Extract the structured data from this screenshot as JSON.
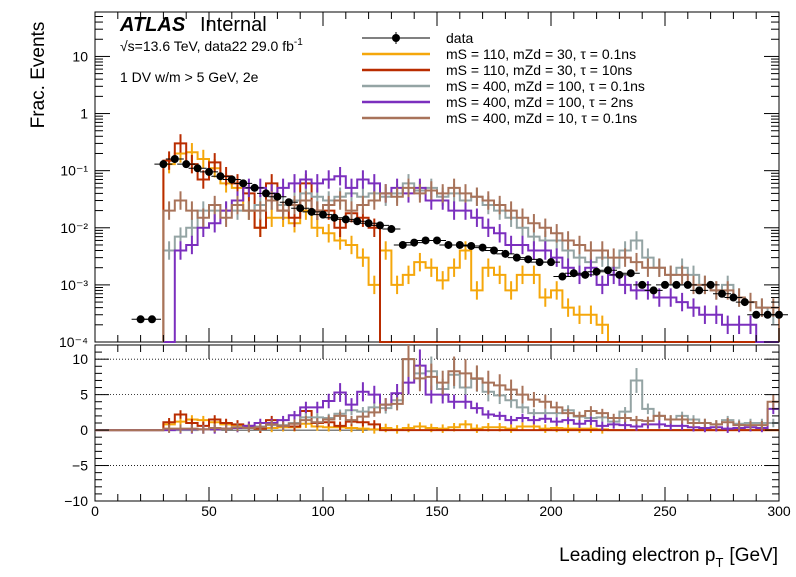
{
  "chart_data": {
    "type": "line",
    "subtype": "histogram-with-ratio",
    "experiment": "ATLAS",
    "status": "Internal",
    "energy_label": "√s=13.6 TeV, data22 29.0 fb",
    "lumi_superscript": "-1",
    "selection_label": "1 DV w/m > 5 GeV, 2e",
    "xlabel": "Leading electron p",
    "xlabel_sub": "T",
    "xlabel_unit": "[GeV]",
    "ylabel": "Frac. Events",
    "xlim": [
      0,
      300
    ],
    "ylim_log": [
      0.0001,
      60
    ],
    "ratio_ylim": [
      -10,
      12
    ],
    "x_ticks": [
      "0",
      "50",
      "100",
      "150",
      "200",
      "250",
      "300"
    ],
    "y_ticks_main": [
      {
        "value": 10,
        "label": "10"
      },
      {
        "value": 1,
        "label": "1"
      },
      {
        "value": 0.1,
        "label": "10⁻¹"
      },
      {
        "value": 0.01,
        "label": "10⁻²"
      },
      {
        "value": 0.001,
        "label": "10⁻³"
      },
      {
        "value": 0.0001,
        "label": "10⁻⁴"
      }
    ],
    "y_ticks_ratio": [
      "10",
      "5",
      "0",
      "−5",
      "−10"
    ],
    "legend": [
      {
        "label": "data",
        "color": "#000000",
        "marker": "point"
      },
      {
        "label": "mS = 110, mZd = 30, τ = 0.1ns",
        "color": "#f5a70b",
        "marker": "line"
      },
      {
        "label": "mS = 110, mZd = 30, τ = 10ns",
        "color": "#b92c00",
        "marker": "line"
      },
      {
        "label": "mS = 400, mZd = 100, τ = 0.1ns",
        "color": "#94a4a4",
        "marker": "line"
      },
      {
        "label": "mS = 400, mZd = 100, τ = 2ns",
        "color": "#7b2fbe",
        "marker": "line"
      },
      {
        "label": "mS = 400, mZd = 10, τ = 0.1ns",
        "color": "#a8735a",
        "marker": "line"
      }
    ],
    "bin_width": 5,
    "data": {
      "name": "data",
      "x": [
        20,
        25,
        30,
        35,
        40,
        45,
        50,
        55,
        60,
        65,
        70,
        75,
        80,
        85,
        90,
        95,
        100,
        105,
        110,
        115,
        120,
        125,
        130,
        135,
        140,
        145,
        150,
        155,
        160,
        165,
        170,
        175,
        180,
        185,
        190,
        195,
        200,
        205,
        210,
        215,
        220,
        225,
        230,
        235,
        240,
        245,
        250,
        255,
        260,
        265,
        270,
        275,
        280,
        285,
        290,
        295,
        300
      ],
      "y": [
        0.00025,
        0.00025,
        0.13,
        0.16,
        0.13,
        0.11,
        0.095,
        0.08,
        0.07,
        0.06,
        0.05,
        0.04,
        0.035,
        0.028,
        0.022,
        0.019,
        0.017,
        0.015,
        0.014,
        0.013,
        0.012,
        0.011,
        0.0095,
        0.005,
        0.0055,
        0.006,
        0.006,
        0.005,
        0.005,
        0.0048,
        0.0045,
        0.004,
        0.0035,
        0.003,
        0.0028,
        0.0025,
        0.0025,
        0.0014,
        0.0016,
        0.0015,
        0.0017,
        0.0018,
        0.0015,
        0.0016,
        0.001,
        0.0008,
        0.001,
        0.001,
        0.001,
        0.0008,
        0.001,
        0.0007,
        0.0006,
        0.0005,
        0.0003,
        0.0003,
        0.0003
      ]
    },
    "series": [
      {
        "name": "mS = 110, mZd = 30, τ = 0.1ns",
        "color": "#f5a70b",
        "edges": [
          30,
          35,
          40,
          45,
          50,
          55,
          60,
          65,
          70,
          75,
          80,
          85,
          90,
          95,
          100,
          105,
          110,
          115,
          120,
          125,
          130,
          135,
          140,
          145,
          150,
          155,
          160,
          165,
          170,
          175,
          180,
          185,
          190,
          195,
          200,
          205,
          210,
          215,
          220,
          225,
          230,
          235,
          240,
          245,
          250,
          255,
          260,
          265,
          270,
          275,
          280,
          285,
          290,
          295,
          300
        ],
        "values": [
          0.13,
          0.2,
          0.21,
          0.16,
          0.11,
          0.06,
          0.05,
          0.02,
          0.01,
          0.015,
          0.015,
          0.012,
          0.02,
          0.01,
          0.008,
          0.006,
          0.005,
          0.003,
          0.001,
          0.004,
          0.001,
          0.0015,
          0.0025,
          0.002,
          0.0012,
          0.002,
          0.004,
          0.0008,
          0.002,
          0.0015,
          0.0008,
          0.0015,
          0.0015,
          0.0006,
          0.0008,
          0.0004,
          0.0003,
          0.0003,
          0.0002,
          0.0001,
          0.0001,
          0.0001,
          0.0001,
          0.0001,
          0.0001,
          0.0001,
          0.0001,
          0.0001,
          0.0001,
          0.0001,
          0.0001,
          0.0001,
          0.0001,
          0.0001
        ]
      },
      {
        "name": "mS = 110, mZd = 30, τ = 10ns",
        "color": "#b92c00",
        "edges": [
          30,
          35,
          40,
          45,
          50,
          55,
          60,
          65,
          70,
          75,
          80,
          85,
          90,
          95,
          100,
          105,
          110,
          115,
          120,
          125,
          130,
          135,
          140,
          145,
          150,
          155,
          160,
          165,
          170,
          175,
          180,
          185,
          190,
          195,
          200,
          205,
          210,
          215,
          220,
          225,
          230,
          235,
          240,
          245,
          250,
          255,
          260,
          265,
          270,
          275,
          280,
          285,
          290,
          295,
          300
        ],
        "values": [
          0.15,
          0.3,
          0.13,
          0.07,
          0.14,
          0.08,
          0.06,
          0.04,
          0.01,
          0.06,
          0.02,
          0.015,
          0.06,
          0.02,
          0.02,
          0.01,
          0.018,
          0.015,
          0.01,
          0.0001,
          0.0001,
          0.0001,
          0.0001,
          0.0001,
          0.0001,
          0.0001,
          0.0001,
          0.0001,
          0.0001,
          0.0001,
          0.0001,
          0.0001,
          0.0001,
          0.0001,
          0.0001,
          0.0001,
          0.0001,
          0.0001,
          0.0001,
          0.0001,
          0.0001,
          0.0001,
          0.0001,
          0.0001,
          0.0001,
          0.0001,
          0.0001,
          0.0001,
          0.0001,
          0.0001,
          0.0001,
          0.0001,
          0.0001,
          0.0001
        ]
      },
      {
        "name": "mS = 400, mZd = 100, τ = 0.1ns",
        "color": "#94a4a4",
        "edges": [
          30,
          35,
          40,
          45,
          50,
          55,
          60,
          65,
          70,
          75,
          80,
          85,
          90,
          95,
          100,
          105,
          110,
          115,
          120,
          125,
          130,
          135,
          140,
          145,
          150,
          155,
          160,
          165,
          170,
          175,
          180,
          185,
          190,
          195,
          200,
          205,
          210,
          215,
          220,
          225,
          230,
          235,
          240,
          245,
          250,
          255,
          260,
          265,
          270,
          275,
          280,
          285,
          290,
          295,
          300
        ],
        "values": [
          0.004,
          0.007,
          0.01,
          0.02,
          0.02,
          0.02,
          0.02,
          0.02,
          0.025,
          0.03,
          0.025,
          0.03,
          0.04,
          0.035,
          0.03,
          0.035,
          0.04,
          0.035,
          0.04,
          0.035,
          0.04,
          0.06,
          0.045,
          0.05,
          0.035,
          0.04,
          0.03,
          0.035,
          0.025,
          0.02,
          0.015,
          0.01,
          0.007,
          0.006,
          0.006,
          0.004,
          0.003,
          0.0025,
          0.003,
          0.002,
          0.004,
          0.006,
          0.003,
          0.002,
          0.0015,
          0.002,
          0.0015,
          0.001,
          0.0008,
          0.001,
          0.0006,
          0.0005,
          0.0004,
          0.0003
        ]
      },
      {
        "name": "mS = 400, mZd = 100, τ = 2ns",
        "color": "#7b2fbe",
        "edges": [
          30,
          35,
          40,
          45,
          50,
          55,
          60,
          65,
          70,
          75,
          80,
          85,
          90,
          95,
          100,
          105,
          110,
          115,
          120,
          125,
          130,
          135,
          140,
          145,
          150,
          155,
          160,
          165,
          170,
          175,
          180,
          185,
          190,
          195,
          200,
          205,
          210,
          215,
          220,
          225,
          230,
          235,
          240,
          245,
          250,
          255,
          260,
          265,
          270,
          275,
          280,
          285,
          290,
          295,
          300
        ],
        "values": [
          0.0001,
          0.004,
          0.005,
          0.01,
          0.012,
          0.02,
          0.03,
          0.05,
          0.05,
          0.04,
          0.05,
          0.06,
          0.07,
          0.06,
          0.07,
          0.08,
          0.05,
          0.07,
          0.06,
          0.04,
          0.05,
          0.04,
          0.05,
          0.03,
          0.03,
          0.02,
          0.02,
          0.015,
          0.01,
          0.008,
          0.005,
          0.005,
          0.004,
          0.004,
          0.003,
          0.002,
          0.0015,
          0.002,
          0.001,
          0.0015,
          0.001,
          0.0008,
          0.0008,
          0.0006,
          0.0006,
          0.0005,
          0.0004,
          0.0003,
          0.0003,
          0.0002,
          0.0002,
          0.0002,
          0.0001,
          0.0001
        ]
      },
      {
        "name": "mS = 400, mZd = 10, τ = 0.1ns",
        "color": "#a8735a",
        "edges": [
          30,
          35,
          40,
          45,
          50,
          55,
          60,
          65,
          70,
          75,
          80,
          85,
          90,
          95,
          100,
          105,
          110,
          115,
          120,
          125,
          130,
          135,
          140,
          145,
          150,
          155,
          160,
          165,
          170,
          175,
          180,
          185,
          190,
          195,
          200,
          205,
          210,
          215,
          220,
          225,
          230,
          235,
          240,
          245,
          250,
          255,
          260,
          265,
          270,
          275,
          280,
          285,
          290,
          295,
          300
        ],
        "values": [
          0.02,
          0.03,
          0.02,
          0.015,
          0.025,
          0.015,
          0.025,
          0.02,
          0.02,
          0.03,
          0.02,
          0.025,
          0.03,
          0.02,
          0.025,
          0.03,
          0.02,
          0.025,
          0.03,
          0.04,
          0.035,
          0.05,
          0.04,
          0.045,
          0.04,
          0.05,
          0.04,
          0.035,
          0.03,
          0.025,
          0.02,
          0.015,
          0.012,
          0.01,
          0.008,
          0.006,
          0.005,
          0.004,
          0.004,
          0.003,
          0.003,
          0.0025,
          0.002,
          0.002,
          0.0015,
          0.0015,
          0.001,
          0.001,
          0.0008,
          0.0008,
          0.0006,
          0.0005,
          0.0004,
          0.0004
        ]
      }
    ],
    "ratio": {
      "edges": [
        30,
        35,
        40,
        45,
        50,
        55,
        60,
        65,
        70,
        75,
        80,
        85,
        90,
        95,
        100,
        105,
        110,
        115,
        120,
        125,
        130,
        135,
        140,
        145,
        150,
        155,
        160,
        165,
        170,
        175,
        180,
        185,
        190,
        195,
        200,
        205,
        210,
        215,
        220,
        225,
        230,
        235,
        240,
        245,
        250,
        255,
        260,
        265,
        270,
        275,
        280,
        285,
        290,
        295,
        300
      ],
      "series": [
        {
          "color": "#f5a70b",
          "values": [
            0.8,
            1.2,
            1.5,
            1.4,
            1.1,
            0.8,
            0.7,
            0.3,
            0.2,
            0.3,
            0.4,
            0.4,
            0.9,
            0.5,
            0.4,
            0.4,
            0.3,
            0.2,
            0.1,
            0.3,
            0.1,
            0.3,
            0.5,
            0.3,
            0.2,
            0.4,
            0.8,
            0.2,
            0.4,
            0.4,
            0.2,
            0.5,
            0.5,
            0.2,
            0.3,
            0.2,
            0.2,
            0.2,
            0.1,
            0,
            0,
            0,
            0,
            0,
            0,
            0,
            0,
            0,
            0,
            0,
            0,
            0,
            0,
            0
          ]
        },
        {
          "color": "#b92c00",
          "values": [
            1.1,
            2.2,
            1.0,
            0.6,
            1.5,
            1.0,
            0.8,
            0.6,
            0.2,
            1.4,
            0.6,
            0.5,
            2.7,
            1.0,
            1.1,
            0.6,
            1.2,
            1.1,
            0.8,
            0,
            0,
            0,
            0,
            0,
            0,
            0,
            0,
            0,
            0,
            0,
            0,
            0,
            0,
            0,
            0,
            0,
            0,
            0,
            0,
            0,
            0,
            0,
            0,
            0,
            0,
            0,
            0,
            0,
            0,
            0,
            0,
            0,
            0,
            0
          ]
        },
        {
          "color": "#94a4a4",
          "values": [
            0,
            0,
            0,
            0.1,
            0.2,
            0.2,
            0.3,
            0.3,
            0.5,
            0.7,
            0.7,
            1.0,
            1.8,
            1.8,
            1.7,
            2.3,
            2.8,
            2.6,
            3.2,
            3.1,
            4.2,
            10.0,
            8.0,
            8.3,
            5.8,
            7.8,
            6.0,
            7.2,
            5.4,
            4.9,
            4.2,
            3.2,
            2.4,
            2.4,
            2.4,
            2.8,
            1.9,
            1.7,
            1.8,
            1.2,
            2.6,
            7.0,
            3.0,
            2.0,
            1.5,
            2.0,
            1.5,
            1.0,
            0.8,
            1.4,
            0.9,
            1.0,
            1.0,
            1.0
          ]
        },
        {
          "color": "#7b2fbe",
          "values": [
            0,
            0.1,
            0.1,
            0.1,
            0.1,
            0.2,
            0.3,
            0.6,
            1.0,
            1.0,
            1.4,
            2.1,
            3.2,
            3.2,
            4.1,
            5.3,
            3.6,
            5.4,
            5.0,
            3.6,
            5.2,
            6.7,
            9.1,
            5.0,
            5.0,
            4.0,
            4.0,
            3.1,
            2.2,
            2.0,
            1.4,
            1.7,
            1.4,
            1.6,
            1.2,
            1.4,
            0.9,
            1.3,
            0.6,
            0.8,
            0.7,
            0.5,
            0.8,
            0.8,
            0.6,
            0.6,
            0.4,
            0.3,
            0.4,
            0.2,
            0.3,
            0.4,
            0.3,
            3.0
          ]
        },
        {
          "color": "#a8735a",
          "values": [
            0.2,
            0.2,
            0.2,
            0.1,
            0.3,
            0.2,
            0.4,
            0.3,
            0.4,
            0.8,
            0.6,
            0.9,
            1.4,
            1.1,
            1.5,
            2.0,
            1.4,
            1.9,
            2.5,
            3.6,
            3.7,
            10.0,
            7.3,
            7.5,
            6.7,
            8.3,
            8.0,
            7.3,
            6.7,
            6.3,
            5.7,
            5.0,
            4.3,
            4.0,
            3.2,
            2.4,
            2.0,
            2.7,
            2.4,
            1.7,
            1.7,
            1.4,
            1.3,
            2.0,
            1.5,
            1.5,
            1.0,
            1.0,
            0.8,
            1.1,
            0.7,
            0.7,
            0.7,
            4.0
          ]
        }
      ]
    }
  }
}
